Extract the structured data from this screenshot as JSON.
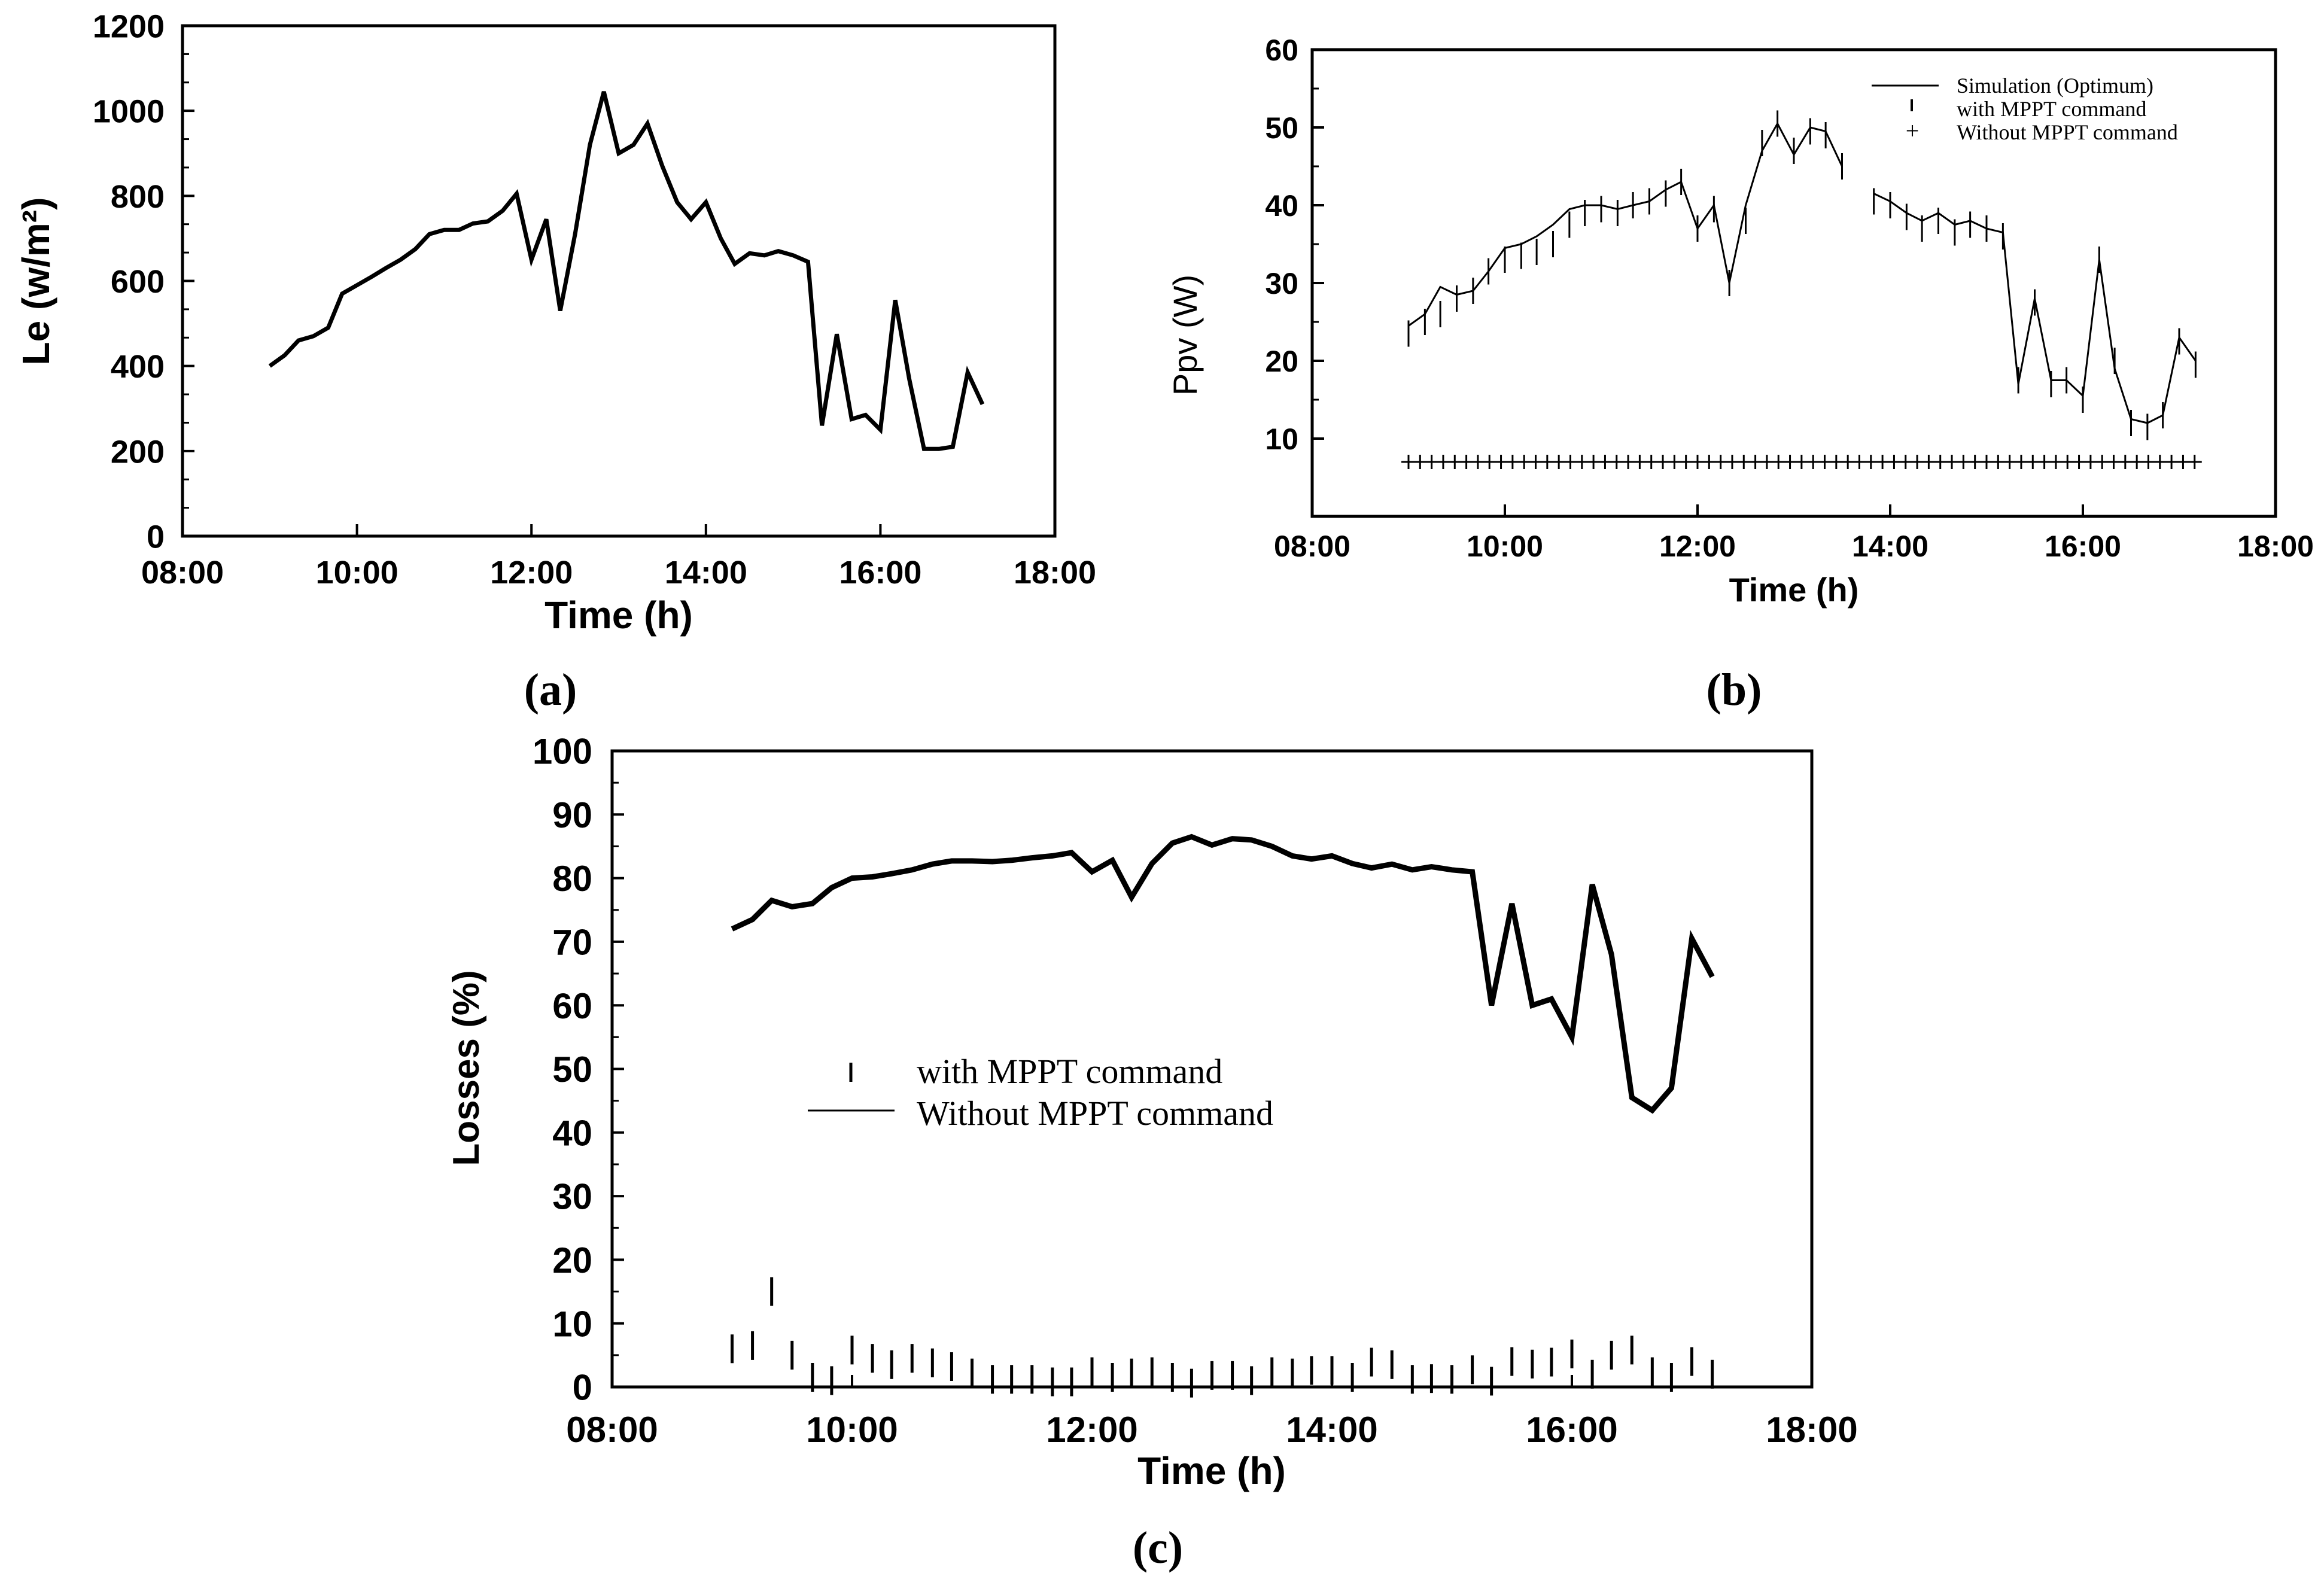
{
  "figure": {
    "background": "#ffffff",
    "ink": "#000000"
  },
  "chart_data": [
    {
      "id": "a",
      "panel_label": "(a)",
      "type": "line",
      "title": "",
      "xlabel": "Time (h)",
      "ylabel": "Le (w/m²)",
      "xlim": [
        8,
        18
      ],
      "ylim": [
        0,
        1200
      ],
      "xticks": [
        8,
        10,
        12,
        14,
        16,
        18
      ],
      "xtick_labels": [
        "08:00",
        "10:00",
        "12:00",
        "14:00",
        "16:00",
        "18:00"
      ],
      "yticks": [
        0,
        200,
        400,
        600,
        800,
        1000,
        1200
      ],
      "ytick_labels": [
        "0",
        "200",
        "400",
        "600",
        "800",
        "1000",
        "1200"
      ],
      "series": [
        {
          "name": "Le",
          "style": "line-thick",
          "x": [
            9.0,
            9.17,
            9.33,
            9.5,
            9.67,
            9.83,
            10.0,
            10.17,
            10.33,
            10.5,
            10.67,
            10.83,
            11.0,
            11.17,
            11.33,
            11.5,
            11.67,
            11.83,
            12.0,
            12.17,
            12.33,
            12.5,
            12.67,
            12.83,
            13.0,
            13.17,
            13.33,
            13.5,
            13.67,
            13.83,
            14.0,
            14.17,
            14.33,
            14.5,
            14.67,
            14.83,
            15.0,
            15.17,
            15.33,
            15.5,
            15.67,
            15.83,
            16.0,
            16.17,
            16.33,
            16.5,
            16.67,
            16.83,
            17.0,
            17.17
          ],
          "y": [
            400,
            425,
            460,
            470,
            490,
            570,
            590,
            610,
            630,
            650,
            675,
            710,
            720,
            720,
            735,
            740,
            765,
            805,
            650,
            745,
            530,
            710,
            920,
            1045,
            900,
            920,
            970,
            870,
            785,
            745,
            785,
            700,
            640,
            665,
            660,
            670,
            660,
            645,
            260,
            475,
            275,
            285,
            250,
            555,
            370,
            205,
            205,
            210,
            385,
            310
          ]
        }
      ]
    },
    {
      "id": "b",
      "panel_label": "(b)",
      "type": "line",
      "title": "",
      "xlabel": "Time (h)",
      "ylabel": "Ppv (W)",
      "xlim": [
        8,
        18
      ],
      "ylim": [
        0,
        60
      ],
      "xticks": [
        8,
        10,
        12,
        14,
        16,
        18
      ],
      "xtick_labels": [
        "08:00",
        "10:00",
        "12:00",
        "14:00",
        "16:00",
        "18:00"
      ],
      "yticks": [
        10,
        20,
        30,
        40,
        50,
        60
      ],
      "ytick_labels": [
        "10",
        "20",
        "30",
        "40",
        "50",
        "60"
      ],
      "legend": [
        "Simulation (Optimum)",
        "with MPPT command",
        "Without MPPT command"
      ],
      "legend_symbols": [
        "—",
        "ı",
        "+"
      ],
      "legend_position": "top-right",
      "series": [
        {
          "name": "Simulation (Optimum)",
          "style": "line-thin",
          "x": [
            9.0,
            9.17,
            9.33,
            9.5,
            9.67,
            9.83,
            10.0,
            10.17,
            10.33,
            10.5,
            10.67,
            10.83,
            11.0,
            11.17,
            11.33,
            11.5,
            11.67,
            11.83,
            12.0,
            12.17,
            12.33,
            12.5,
            12.67,
            12.83,
            13.0,
            13.17,
            13.33,
            13.5,
            null,
            13.83,
            14.0,
            14.17,
            14.33,
            14.5,
            14.67,
            14.83,
            15.0,
            15.17,
            15.33,
            15.5,
            15.67,
            15.83,
            16.0,
            16.17,
            16.33,
            16.5,
            16.67,
            16.83,
            17.0,
            17.17
          ],
          "y": [
            24.5,
            26,
            29.5,
            28.5,
            29,
            31.5,
            34.5,
            35,
            36,
            37.5,
            39.5,
            40,
            40,
            39.5,
            40,
            40.5,
            42,
            43,
            37,
            40,
            30,
            40,
            47,
            50.5,
            46.5,
            50,
            49.5,
            45,
            null,
            41.5,
            40.5,
            39,
            38,
            39,
            37.5,
            38,
            37,
            36.5,
            17,
            28,
            17.5,
            17.5,
            15.5,
            33,
            19,
            12.5,
            12,
            13,
            23,
            20
          ]
        },
        {
          "name": "with MPPT command",
          "style": "vbar",
          "x": [
            9.0,
            9.17,
            9.33,
            9.5,
            9.67,
            9.83,
            10.0,
            10.17,
            10.33,
            10.5,
            10.67,
            10.83,
            11.0,
            11.17,
            11.33,
            11.5,
            11.67,
            11.83,
            12.0,
            12.17,
            12.33,
            12.5,
            12.67,
            12.83,
            13.0,
            13.17,
            13.33,
            13.5,
            13.83,
            14.0,
            14.17,
            14.33,
            14.5,
            14.67,
            14.83,
            15.0,
            15.17,
            15.33,
            15.5,
            15.67,
            15.83,
            16.0,
            16.17,
            16.33,
            16.5,
            16.67,
            16.83,
            17.0,
            17.17
          ],
          "y": [
            23.5,
            25,
            26,
            28,
            29,
            31.5,
            33,
            33.5,
            34,
            35,
            37.5,
            39,
            39.5,
            39,
            40,
            40.5,
            41.5,
            43,
            37,
            39.5,
            30,
            38,
            48,
            50.5,
            47,
            49.5,
            49,
            45,
            40.5,
            40,
            38.5,
            37,
            38,
            36.5,
            37.5,
            37,
            36,
            17.5,
            27.5,
            17,
            17.5,
            15,
            33,
            20,
            12,
            11.5,
            13,
            22.5,
            19.5
          ]
        },
        {
          "name": "Without MPPT command",
          "style": "plus",
          "x": [
            9.0,
            9.12,
            9.24,
            9.36,
            9.48,
            9.6,
            9.72,
            9.84,
            9.96,
            10.08,
            10.2,
            10.32,
            10.44,
            10.56,
            10.68,
            10.8,
            10.92,
            11.04,
            11.16,
            11.28,
            11.4,
            11.52,
            11.64,
            11.76,
            11.88,
            12.0,
            12.12,
            12.24,
            12.36,
            12.48,
            12.6,
            12.72,
            12.84,
            12.96,
            13.08,
            13.2,
            13.32,
            13.44,
            13.56,
            13.68,
            13.8,
            13.92,
            14.04,
            14.16,
            14.28,
            14.4,
            14.52,
            14.64,
            14.76,
            14.88,
            15.0,
            15.12,
            15.24,
            15.36,
            15.48,
            15.6,
            15.72,
            15.84,
            15.96,
            16.08,
            16.2,
            16.32,
            16.44,
            16.56,
            16.68,
            16.8,
            16.92,
            17.04,
            17.16
          ],
          "y": [
            7,
            7,
            7,
            7,
            7,
            7,
            7,
            7,
            7,
            7,
            7,
            7,
            7,
            7,
            7,
            7,
            7,
            7,
            7,
            7,
            7,
            7,
            7,
            7,
            7,
            7,
            7,
            7,
            7,
            7,
            7,
            7,
            7,
            7,
            7,
            7,
            7,
            7,
            7,
            7,
            7,
            7,
            7,
            7,
            7,
            7,
            7,
            7,
            7,
            7,
            7,
            7,
            7,
            7,
            7,
            7,
            7,
            7,
            7,
            7,
            7,
            7,
            7,
            7,
            7,
            7,
            7,
            7,
            7
          ]
        }
      ]
    },
    {
      "id": "c",
      "panel_label": "(c)",
      "type": "line",
      "title": "",
      "xlabel": "Time (h)",
      "ylabel": "Losses (%)",
      "xlim": [
        8,
        18
      ],
      "ylim": [
        0,
        100
      ],
      "xticks": [
        8,
        10,
        12,
        14,
        16,
        18
      ],
      "xtick_labels": [
        "08:00",
        "10:00",
        "12:00",
        "14:00",
        "16:00",
        "18:00"
      ],
      "yticks": [
        0,
        10,
        20,
        30,
        40,
        50,
        60,
        70,
        80,
        90,
        100
      ],
      "ytick_labels": [
        "0",
        "10",
        "20",
        "30",
        "40",
        "50",
        "60",
        "70",
        "80",
        "90",
        "100"
      ],
      "legend": [
        "with MPPT command",
        "Without MPPT command"
      ],
      "legend_position": "center-left",
      "series": [
        {
          "name": "Without MPPT command",
          "style": "line-thick",
          "x": [
            9.0,
            9.17,
            9.33,
            9.5,
            9.67,
            9.83,
            10.0,
            10.17,
            10.33,
            10.5,
            10.67,
            10.83,
            11.0,
            11.17,
            11.33,
            11.5,
            11.67,
            11.83,
            12.0,
            12.17,
            12.33,
            12.5,
            12.67,
            12.83,
            13.0,
            13.17,
            13.33,
            13.5,
            13.67,
            13.83,
            14.0,
            14.17,
            14.33,
            14.5,
            14.67,
            14.83,
            15.0,
            15.17,
            15.33,
            15.5,
            15.67,
            15.83,
            16.0,
            16.17,
            16.33,
            16.5,
            16.67,
            16.83,
            17.0,
            17.17
          ],
          "y": [
            72,
            73.5,
            76.5,
            75.5,
            76,
            78.5,
            80,
            80.2,
            80.7,
            81.3,
            82.2,
            82.7,
            82.7,
            82.6,
            82.8,
            83.2,
            83.5,
            84,
            81,
            82.8,
            77,
            82.3,
            85.5,
            86.5,
            85.2,
            86.2,
            86,
            85,
            83.5,
            83,
            83.5,
            82.3,
            81.6,
            82.2,
            81.3,
            81.8,
            81.3,
            81,
            60,
            76,
            60,
            61,
            55,
            79,
            68,
            45.5,
            43.5,
            47,
            70.5,
            64.5
          ]
        },
        {
          "name": "with MPPT command",
          "style": "vbar",
          "x": [
            9.0,
            9.17,
            9.33,
            9.5,
            9.67,
            9.83,
            10.0,
            10.17,
            10.33,
            10.5,
            10.67,
            10.83,
            11.0,
            11.17,
            11.33,
            11.5,
            11.67,
            11.83,
            12.0,
            12.17,
            12.33,
            12.5,
            12.67,
            12.83,
            13.0,
            13.17,
            13.33,
            13.5,
            13.67,
            13.83,
            14.0,
            14.17,
            14.33,
            14.5,
            14.67,
            14.83,
            15.0,
            15.17,
            15.33,
            15.5,
            15.67,
            15.83,
            16.0,
            16.17,
            16.33,
            16.5,
            16.67,
            16.83,
            17.0,
            17.17
          ],
          "y": [
            6,
            6.5,
            15,
            5,
            1.5,
            1,
            5.8,
            4.5,
            3.5,
            4.5,
            3.8,
            3.2,
            2.2,
            1.2,
            1.2,
            1.2,
            0.8,
            0.8,
            2.4,
            1.5,
            2.2,
            2.4,
            1.5,
            0.6,
            1.8,
            1.8,
            1,
            2.4,
            2.2,
            2.6,
            2.6,
            1.5,
            3.9,
            3.5,
            1.2,
            1.3,
            1.2,
            2.7,
            0.9,
            4,
            3.6,
            3.9,
            5.2,
            2,
            5,
            5.8,
            2.4,
            1.5,
            4,
            2
          ]
        }
      ]
    }
  ]
}
